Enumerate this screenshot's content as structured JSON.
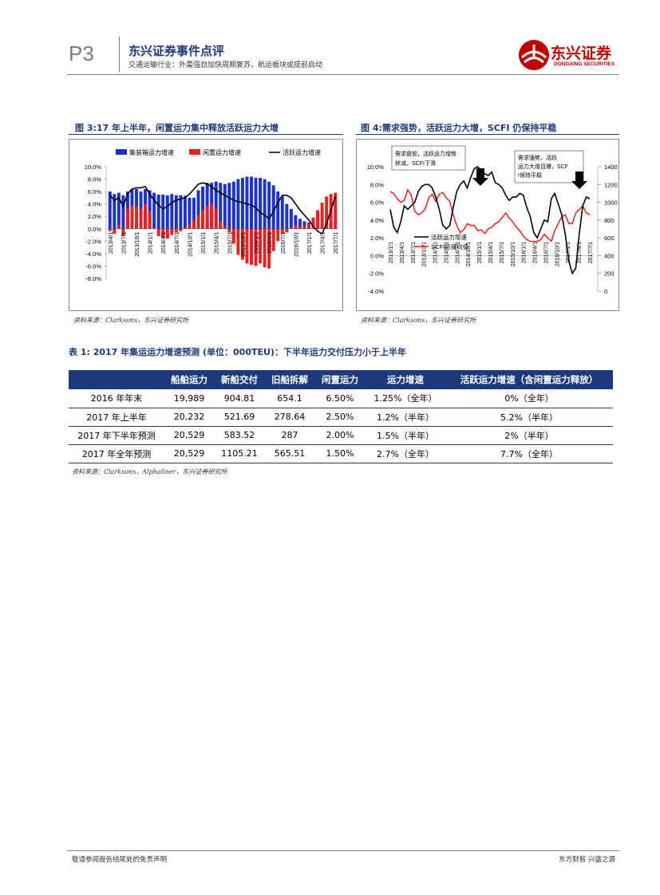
{
  "header": {
    "page_number": "P3",
    "report_type": "东兴证券事件点评",
    "subtitle": "交通运输行业：外需强劲加快周期复苏，航运板块或提前启动",
    "logo_text": "东兴证券",
    "logo_en": "DONGXING SECURITIES"
  },
  "figure3": {
    "title": "图 3:17 年上半年，闲置运力集中释放活跃运力大增",
    "source": "资料来源：Clarksons，东兴证券研究所",
    "colors": {
      "total": "#1c33c4",
      "idle": "#e32222",
      "active": "#000000"
    }
  },
  "figure4": {
    "title": "图 4:需求强势，活跃运力大增，SCFI 仍保持平稳",
    "source": "资料来源：Clarksons，东兴证券研究所",
    "colors": {
      "active": "#000000",
      "scfi": "#e32222"
    }
  },
  "chart_data": [
    {
      "type": "bar",
      "legend_position": "top",
      "series": [
        {
          "name": "集装箱运力增速",
          "type": "bar",
          "values": [
            6.0,
            5.6,
            5.8,
            5.4,
            6.0,
            6.4,
            6.4,
            6.0,
            6.4,
            6.2,
            5.8,
            5.5,
            5.5,
            5.4,
            5.6,
            5.4,
            5.4,
            5.3,
            5.0,
            5.0,
            6.2,
            6.8,
            7.4,
            7.4,
            7.6,
            7.4,
            7.2,
            7.4,
            7.6,
            8.0,
            8.2,
            8.4,
            8.4,
            8.2,
            8.2,
            8.0,
            7.6,
            7.0,
            6.0,
            5.2,
            4.0,
            3.2,
            2.2,
            1.6,
            1.2,
            1.0,
            1.0,
            1.0,
            1.0,
            1.0,
            1.2,
            1.2
          ]
        },
        {
          "name": "闲置运力增速",
          "type": "bar",
          "values": [
            -0.4,
            -0.8,
            0.6,
            -1.2,
            3.2,
            3.8,
            3.6,
            3.2,
            4.0,
            2.8,
            0.2,
            -1.2,
            -1.4,
            -1.6,
            -1.0,
            -0.6,
            -0.4,
            0.2,
            0.6,
            1.4,
            2.2,
            3.0,
            3.6,
            4.0,
            3.2,
            1.2,
            0.4,
            -0.6,
            -2.4,
            -4.2,
            -5.0,
            -5.6,
            -5.8,
            -6.0,
            -5.6,
            -6.2,
            -6.4,
            -3.6,
            -2.0,
            -0.8,
            -0.6,
            0.2,
            0.6,
            0.4,
            0.4,
            0.8,
            1.8,
            3.0,
            4.2,
            5.2,
            5.6,
            5.8
          ]
        },
        {
          "name": "活跃运力增速",
          "type": "line",
          "values": [
            5.4,
            4.6,
            5.0,
            3.6,
            5.6,
            6.4,
            6.6,
            6.6,
            6.8,
            5.6,
            4.6,
            3.8,
            3.2,
            3.6,
            4.2,
            4.6,
            4.8,
            5.0,
            5.6,
            6.4,
            7.2,
            7.4,
            7.2,
            6.8,
            6.2,
            5.8,
            5.4,
            5.0,
            4.6,
            4.4,
            4.2,
            4.0,
            3.8,
            3.4,
            2.6,
            2.2,
            1.6,
            2.8,
            4.2,
            5.4,
            5.4,
            5.0,
            4.0,
            3.0,
            2.2,
            1.4,
            0.4,
            -0.4,
            -0.8,
            0.8,
            3.0,
            5.2
          ]
        }
      ],
      "x_ticks": [
        "2013/4/1",
        "2013/7/1",
        "2013/10/1",
        "2014/1/1",
        "2014/4/1",
        "2014/7/1",
        "2014/10/1",
        "2015/1/1",
        "2015/4/1",
        "2015/7/1",
        "2015/10/1",
        "2016/1/1",
        "2016/4/1",
        "2016/7/1",
        "2016/10/1",
        "2017/1/1",
        "2017/4/1",
        "2017/7/1"
      ],
      "y_ticks": [
        "10.0%",
        "8.0%",
        "6.0%",
        "4.0%",
        "2.0%",
        "0.0%",
        "-2.0%",
        "-4.0%",
        "-6.0%",
        "-8.0%"
      ],
      "ylim": [
        -8,
        10
      ]
    },
    {
      "type": "line",
      "legend_position": "lower-left",
      "series": [
        {
          "name": "活跃运力增速",
          "axis": "left",
          "values": [
            5.2,
            3.2,
            2.6,
            3.8,
            5.6,
            5.2,
            5.6,
            6.0,
            7.2,
            7.8,
            8.0,
            8.0,
            7.6,
            6.6,
            5.2,
            3.4,
            3.0,
            3.4,
            5.4,
            7.2,
            8.0,
            8.4,
            7.6,
            8.8,
            9.8,
            10.0,
            9.6,
            9.2,
            9.0,
            9.4,
            8.2,
            8.0,
            7.6,
            6.8,
            6.2,
            6.6,
            6.6,
            7.0,
            6.8,
            5.4,
            4.4,
            2.6,
            2.0,
            3.0,
            4.0,
            3.8,
            6.4,
            7.0,
            5.8,
            4.6,
            2.4,
            -0.6,
            -2.0,
            -1.4,
            2.4,
            5.6,
            6.6,
            6.4
          ]
        },
        {
          "name": "SCFI月度均值",
          "axis": "right",
          "values": [
            1120,
            1100,
            1040,
            1000,
            1020,
            1140,
            1080,
            900,
            860,
            880,
            930,
            1050,
            1090,
            1010,
            1090,
            1110,
            1050,
            1010,
            860,
            740,
            660,
            690,
            760,
            740,
            740,
            680,
            690,
            650,
            700,
            720,
            760,
            780,
            830,
            880,
            820,
            780,
            720,
            680,
            620,
            580,
            560,
            560,
            560,
            580,
            640,
            600,
            560,
            680,
            760,
            840,
            860,
            760,
            760,
            880,
            920,
            960,
            880,
            860
          ]
        }
      ],
      "x_ticks": [
        "2013/1/1",
        "2013/4/1",
        "2013/7/1",
        "2013/10/1",
        "2014/1/1",
        "2014/4/1",
        "2014/7/1",
        "2014/10/1",
        "2015/1/1",
        "2015/4/1",
        "2015/7/1",
        "2015/10/1",
        "2016/1/1",
        "2016/4/1",
        "2016/7/1",
        "2016/10/1",
        "2017/1/1",
        "2017/4/1",
        "2017/7/1"
      ],
      "y_left_ticks": [
        "10.0%",
        "8.0%",
        "6.0%",
        "4.0%",
        "2.0%",
        "0.0%",
        "-2.0%",
        "-4.0%"
      ],
      "y_right_ticks": [
        "1400",
        "1200",
        "1000",
        "800",
        "600",
        "400",
        "200",
        "0"
      ],
      "ylim_left": [
        -4,
        10
      ],
      "ylim_right": [
        0,
        1400
      ],
      "annotations": [
        {
          "text": "需求疲软，活跃运力增势猝减，SCFI下滑"
        },
        {
          "text": "需求强势，活跃运力大增且爆，SCFI保持平稳"
        }
      ]
    }
  ],
  "table": {
    "title": "表 1: 2017 年集运运力增速预测 (单位：000TEU)：下半年运力交付压力小于上半年",
    "headers": [
      "",
      "船舶运力",
      "新船交付",
      "旧船拆解",
      "闲置运力",
      "运力增速",
      "活跃运力增速（含闲置运力释放）"
    ],
    "rows": [
      [
        "2016 年年末",
        "19,989",
        "904.81",
        "654.1",
        "6.50%",
        "1.25%（全年）",
        "0%（全年）"
      ],
      [
        "2017 年上半年",
        "20,232",
        "521.69",
        "278.64",
        "2.50%",
        "1.2%（半年）",
        "5.2%（半年）"
      ],
      [
        "2017 年下半年预测",
        "20,529",
        "583.52",
        "287",
        "2.00%",
        "1.5%（半年）",
        "2%（半年）"
      ],
      [
        "2017 年全年预测",
        "20,529",
        "1105.21",
        "565.51",
        "1.50%",
        "2.7%（全年）",
        "7.7%（全年）"
      ]
    ],
    "source": "资料来源：Clarksons，Alphaliner，东兴证券研究所"
  },
  "footer": {
    "left": "敬请参阅报告结尾处的免责声明",
    "right": "东方财智 兴盛之源"
  }
}
